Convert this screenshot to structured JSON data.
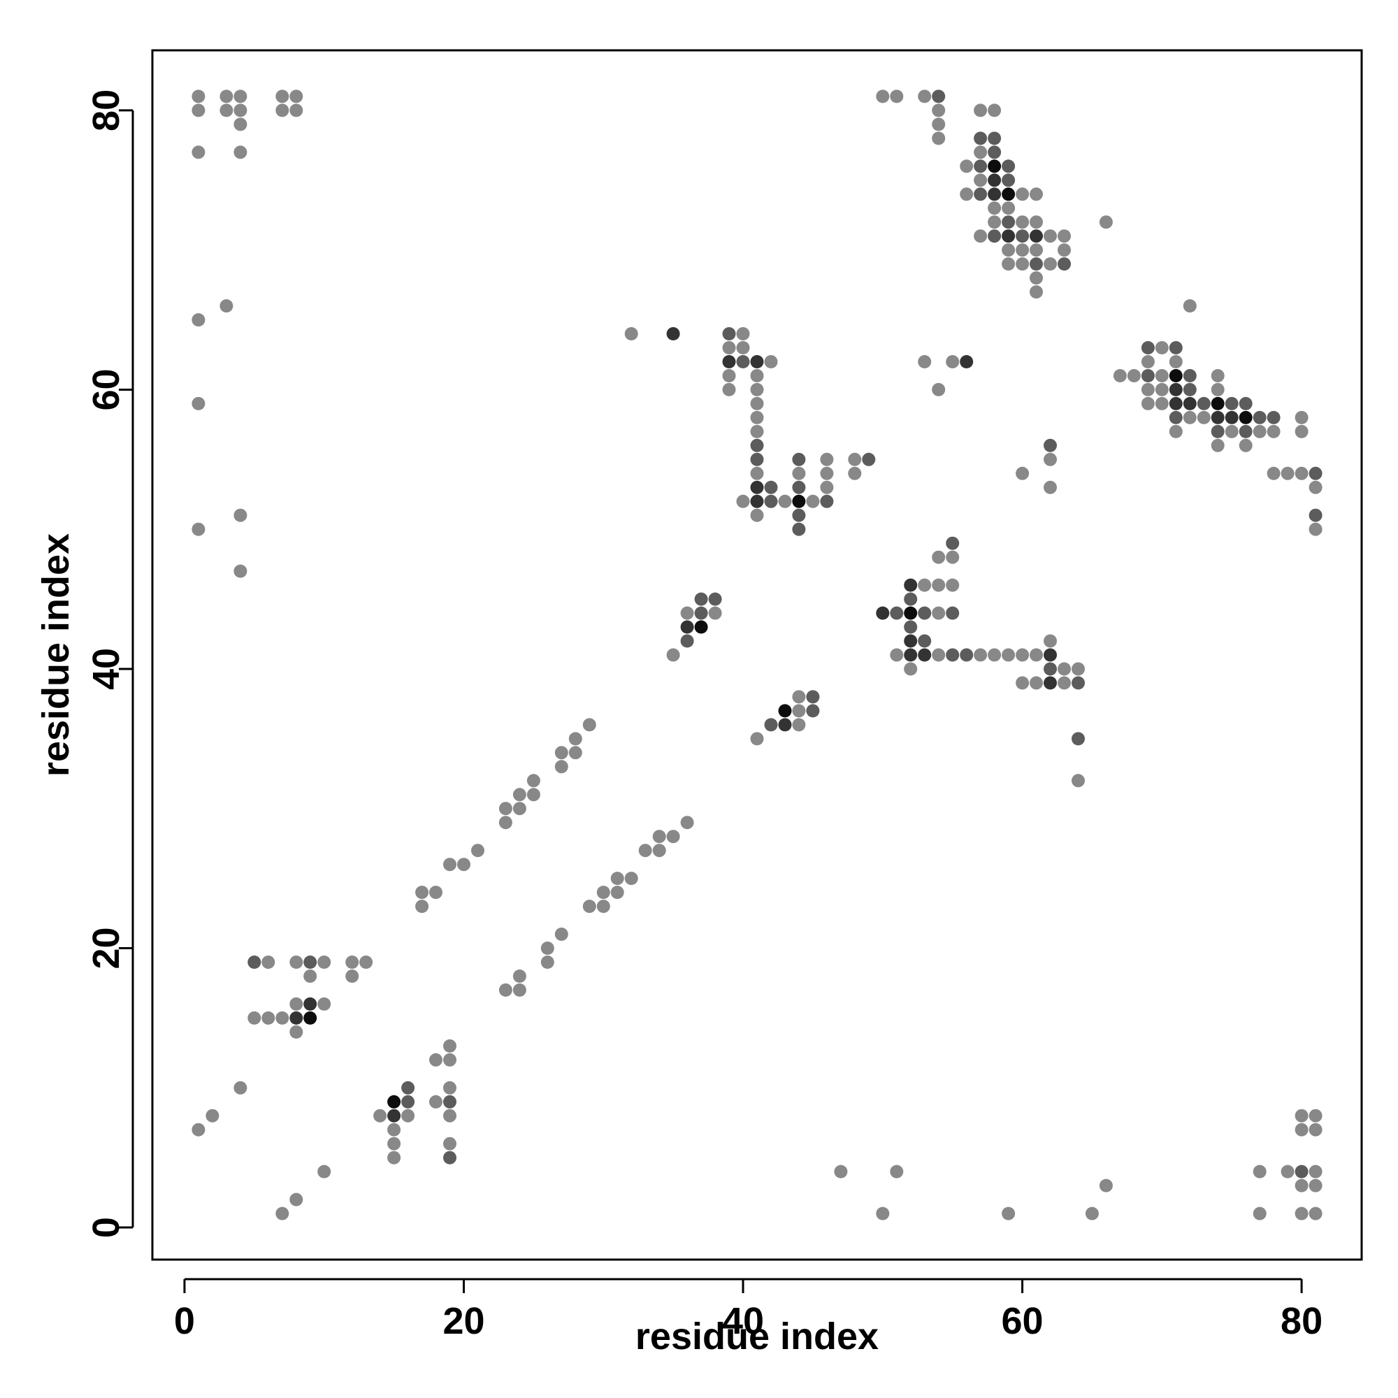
{
  "chart_data": {
    "type": "scatter",
    "title": "",
    "xlabel": "residue index",
    "ylabel": "residue index",
    "xlim": [
      -2.3,
      84.3
    ],
    "ylim": [
      -2.3,
      84.3
    ],
    "xticks": [
      0,
      20,
      40,
      60,
      80
    ],
    "yticks": [
      0,
      20,
      40,
      60,
      80
    ],
    "grid": false,
    "legend": "none",
    "colors": {
      "level1": "#888888",
      "level2": "#5c5c5c",
      "level3": "#333333",
      "level4": "#0d0d0d",
      "frame": "#000000"
    },
    "intensity_levels": [
      1,
      2,
      3,
      4
    ],
    "points": [
      [
        1,
        81,
        1
      ],
      [
        1,
        80,
        1
      ],
      [
        3,
        81,
        1
      ],
      [
        3,
        80,
        1
      ],
      [
        4,
        81,
        1
      ],
      [
        4,
        80,
        1
      ],
      [
        4,
        79,
        1
      ],
      [
        7,
        81,
        1
      ],
      [
        7,
        80,
        1
      ],
      [
        8,
        81,
        1
      ],
      [
        8,
        80,
        1
      ],
      [
        1,
        77,
        1
      ],
      [
        4,
        77,
        1
      ],
      [
        3,
        66,
        1
      ],
      [
        1,
        65,
        1
      ],
      [
        1,
        59,
        1
      ],
      [
        4,
        51,
        1
      ],
      [
        1,
        50,
        1
      ],
      [
        4,
        47,
        1
      ],
      [
        50,
        81,
        1
      ],
      [
        51,
        81,
        1
      ],
      [
        53,
        81,
        1
      ],
      [
        54,
        81,
        2
      ],
      [
        54,
        80,
        1
      ],
      [
        54,
        79,
        1
      ],
      [
        54,
        78,
        1
      ],
      [
        57,
        80,
        1
      ],
      [
        58,
        80,
        1
      ],
      [
        57,
        78,
        2
      ],
      [
        58,
        78,
        2
      ],
      [
        57,
        77,
        1
      ],
      [
        58,
        77,
        2
      ],
      [
        56,
        76,
        1
      ],
      [
        57,
        76,
        2
      ],
      [
        58,
        76,
        4
      ],
      [
        59,
        76,
        2
      ],
      [
        57,
        75,
        1
      ],
      [
        58,
        75,
        3
      ],
      [
        59,
        75,
        2
      ],
      [
        56,
        74,
        1
      ],
      [
        57,
        74,
        2
      ],
      [
        58,
        74,
        3
      ],
      [
        59,
        74,
        4
      ],
      [
        60,
        74,
        1
      ],
      [
        61,
        74,
        1
      ],
      [
        58,
        73,
        1
      ],
      [
        59,
        73,
        1
      ],
      [
        58,
        72,
        1
      ],
      [
        59,
        72,
        2
      ],
      [
        60,
        72,
        1
      ],
      [
        61,
        72,
        1
      ],
      [
        57,
        71,
        1
      ],
      [
        58,
        71,
        2
      ],
      [
        59,
        71,
        3
      ],
      [
        60,
        71,
        2
      ],
      [
        61,
        71,
        3
      ],
      [
        62,
        71,
        1
      ],
      [
        63,
        71,
        1
      ],
      [
        59,
        70,
        1
      ],
      [
        60,
        70,
        1
      ],
      [
        61,
        70,
        1
      ],
      [
        63,
        70,
        1
      ],
      [
        59,
        69,
        1
      ],
      [
        60,
        69,
        1
      ],
      [
        61,
        69,
        2
      ],
      [
        62,
        69,
        1
      ],
      [
        63,
        69,
        2
      ],
      [
        61,
        68,
        1
      ],
      [
        61,
        67,
        1
      ],
      [
        66,
        72,
        1
      ],
      [
        72,
        66,
        1
      ],
      [
        32,
        64,
        1
      ],
      [
        35,
        64,
        3
      ],
      [
        39,
        64,
        2
      ],
      [
        40,
        64,
        1
      ],
      [
        39,
        63,
        1
      ],
      [
        40,
        63,
        1
      ],
      [
        39,
        62,
        3
      ],
      [
        40,
        62,
        2
      ],
      [
        41,
        62,
        3
      ],
      [
        42,
        62,
        1
      ],
      [
        39,
        61,
        1
      ],
      [
        41,
        61,
        1
      ],
      [
        39,
        60,
        1
      ],
      [
        41,
        60,
        1
      ],
      [
        41,
        59,
        1
      ],
      [
        41,
        58,
        1
      ],
      [
        41,
        57,
        1
      ],
      [
        41,
        56,
        2
      ],
      [
        41,
        55,
        2
      ],
      [
        41,
        54,
        1
      ],
      [
        44,
        55,
        2
      ],
      [
        46,
        55,
        1
      ],
      [
        48,
        55,
        1
      ],
      [
        49,
        55,
        2
      ],
      [
        44,
        54,
        1
      ],
      [
        46,
        54,
        1
      ],
      [
        48,
        54,
        1
      ],
      [
        41,
        53,
        3
      ],
      [
        42,
        53,
        2
      ],
      [
        44,
        53,
        2
      ],
      [
        46,
        53,
        1
      ],
      [
        40,
        52,
        1
      ],
      [
        41,
        52,
        3
      ],
      [
        42,
        52,
        2
      ],
      [
        43,
        52,
        1
      ],
      [
        44,
        52,
        4
      ],
      [
        45,
        52,
        1
      ],
      [
        46,
        52,
        2
      ],
      [
        41,
        51,
        1
      ],
      [
        44,
        51,
        2
      ],
      [
        44,
        50,
        2
      ],
      [
        53,
        62,
        1
      ],
      [
        55,
        62,
        1
      ],
      [
        56,
        62,
        3
      ],
      [
        54,
        60,
        1
      ],
      [
        60,
        54,
        1
      ],
      [
        62,
        56,
        2
      ],
      [
        62,
        55,
        1
      ],
      [
        62,
        53,
        1
      ],
      [
        69,
        63,
        2
      ],
      [
        70,
        63,
        1
      ],
      [
        71,
        63,
        2
      ],
      [
        67,
        61,
        1
      ],
      [
        68,
        61,
        1
      ],
      [
        69,
        61,
        2
      ],
      [
        70,
        61,
        1
      ],
      [
        71,
        61,
        4
      ],
      [
        72,
        61,
        2
      ],
      [
        74,
        61,
        1
      ],
      [
        69,
        62,
        1
      ],
      [
        71,
        62,
        1
      ],
      [
        69,
        60,
        1
      ],
      [
        70,
        60,
        1
      ],
      [
        71,
        60,
        3
      ],
      [
        72,
        60,
        2
      ],
      [
        74,
        60,
        1
      ],
      [
        69,
        59,
        1
      ],
      [
        70,
        59,
        1
      ],
      [
        71,
        59,
        3
      ],
      [
        72,
        59,
        3
      ],
      [
        73,
        59,
        2
      ],
      [
        74,
        59,
        4
      ],
      [
        75,
        59,
        2
      ],
      [
        76,
        59,
        2
      ],
      [
        71,
        58,
        2
      ],
      [
        72,
        58,
        1
      ],
      [
        73,
        58,
        1
      ],
      [
        74,
        58,
        3
      ],
      [
        75,
        58,
        3
      ],
      [
        76,
        58,
        4
      ],
      [
        77,
        58,
        2
      ],
      [
        78,
        58,
        2
      ],
      [
        80,
        58,
        1
      ],
      [
        71,
        57,
        1
      ],
      [
        74,
        57,
        2
      ],
      [
        75,
        57,
        1
      ],
      [
        76,
        57,
        2
      ],
      [
        77,
        57,
        1
      ],
      [
        78,
        57,
        1
      ],
      [
        80,
        57,
        1
      ],
      [
        74,
        56,
        1
      ],
      [
        76,
        56,
        1
      ],
      [
        78,
        54,
        1
      ],
      [
        79,
        54,
        1
      ],
      [
        80,
        54,
        1
      ],
      [
        81,
        54,
        2
      ],
      [
        81,
        53,
        1
      ],
      [
        81,
        51,
        2
      ],
      [
        81,
        50,
        1
      ],
      [
        37,
        45,
        2
      ],
      [
        38,
        45,
        2
      ],
      [
        36,
        44,
        1
      ],
      [
        37,
        44,
        2
      ],
      [
        38,
        44,
        1
      ],
      [
        36,
        43,
        3
      ],
      [
        37,
        43,
        4
      ],
      [
        36,
        42,
        2
      ],
      [
        35,
        41,
        1
      ],
      [
        55,
        49,
        2
      ],
      [
        54,
        48,
        1
      ],
      [
        55,
        48,
        1
      ],
      [
        52,
        46,
        3
      ],
      [
        53,
        46,
        1
      ],
      [
        54,
        46,
        1
      ],
      [
        55,
        46,
        1
      ],
      [
        52,
        45,
        2
      ],
      [
        50,
        44,
        3
      ],
      [
        51,
        44,
        2
      ],
      [
        52,
        44,
        4
      ],
      [
        53,
        44,
        2
      ],
      [
        54,
        44,
        1
      ],
      [
        55,
        44,
        2
      ],
      [
        52,
        43,
        2
      ],
      [
        52,
        42,
        3
      ],
      [
        53,
        42,
        2
      ],
      [
        51,
        41,
        1
      ],
      [
        52,
        41,
        3
      ],
      [
        53,
        41,
        3
      ],
      [
        54,
        41,
        1
      ],
      [
        55,
        41,
        2
      ],
      [
        56,
        41,
        2
      ],
      [
        57,
        41,
        1
      ],
      [
        58,
        41,
        1
      ],
      [
        59,
        41,
        1
      ],
      [
        60,
        41,
        1
      ],
      [
        61,
        41,
        1
      ],
      [
        62,
        41,
        3
      ],
      [
        52,
        40,
        1
      ],
      [
        62,
        42,
        1
      ],
      [
        62,
        40,
        2
      ],
      [
        63,
        40,
        1
      ],
      [
        64,
        40,
        1
      ],
      [
        60,
        39,
        1
      ],
      [
        61,
        39,
        1
      ],
      [
        62,
        39,
        3
      ],
      [
        63,
        39,
        1
      ],
      [
        64,
        39,
        2
      ],
      [
        64,
        35,
        2
      ],
      [
        64,
        32,
        1
      ],
      [
        44,
        38,
        1
      ],
      [
        45,
        38,
        2
      ],
      [
        43,
        37,
        4
      ],
      [
        44,
        37,
        1
      ],
      [
        45,
        37,
        2
      ],
      [
        42,
        36,
        2
      ],
      [
        43,
        36,
        3
      ],
      [
        44,
        36,
        1
      ],
      [
        41,
        35,
        1
      ],
      [
        29,
        36,
        1
      ],
      [
        28,
        35,
        1
      ],
      [
        27,
        34,
        1
      ],
      [
        28,
        34,
        1
      ],
      [
        27,
        33,
        1
      ],
      [
        25,
        32,
        1
      ],
      [
        24,
        31,
        1
      ],
      [
        25,
        31,
        1
      ],
      [
        23,
        30,
        1
      ],
      [
        24,
        30,
        1
      ],
      [
        23,
        29,
        1
      ],
      [
        21,
        27,
        1
      ],
      [
        19,
        26,
        1
      ],
      [
        20,
        26,
        1
      ],
      [
        17,
        24,
        1
      ],
      [
        18,
        24,
        1
      ],
      [
        17,
        23,
        1
      ],
      [
        36,
        29,
        1
      ],
      [
        34,
        28,
        1
      ],
      [
        35,
        28,
        1
      ],
      [
        33,
        27,
        1
      ],
      [
        34,
        27,
        1
      ],
      [
        31,
        25,
        1
      ],
      [
        32,
        25,
        1
      ],
      [
        30,
        24,
        1
      ],
      [
        31,
        24,
        1
      ],
      [
        29,
        23,
        1
      ],
      [
        30,
        23,
        1
      ],
      [
        27,
        21,
        1
      ],
      [
        26,
        20,
        1
      ],
      [
        26,
        19,
        1
      ],
      [
        24,
        18,
        1
      ],
      [
        23,
        17,
        1
      ],
      [
        24,
        17,
        1
      ],
      [
        5,
        19,
        2
      ],
      [
        6,
        19,
        1
      ],
      [
        8,
        19,
        1
      ],
      [
        9,
        19,
        2
      ],
      [
        10,
        19,
        1
      ],
      [
        12,
        19,
        1
      ],
      [
        13,
        19,
        1
      ],
      [
        9,
        18,
        1
      ],
      [
        12,
        18,
        1
      ],
      [
        8,
        16,
        1
      ],
      [
        9,
        16,
        3
      ],
      [
        10,
        16,
        1
      ],
      [
        5,
        15,
        1
      ],
      [
        6,
        15,
        1
      ],
      [
        7,
        15,
        1
      ],
      [
        8,
        15,
        3
      ],
      [
        9,
        15,
        4
      ],
      [
        8,
        14,
        1
      ],
      [
        19,
        13,
        1
      ],
      [
        18,
        12,
        1
      ],
      [
        19,
        12,
        1
      ],
      [
        16,
        10,
        2
      ],
      [
        19,
        10,
        1
      ],
      [
        15,
        9,
        4
      ],
      [
        16,
        9,
        2
      ],
      [
        18,
        9,
        1
      ],
      [
        19,
        9,
        2
      ],
      [
        14,
        8,
        1
      ],
      [
        15,
        8,
        3
      ],
      [
        16,
        8,
        1
      ],
      [
        19,
        8,
        1
      ],
      [
        15,
        7,
        1
      ],
      [
        15,
        6,
        1
      ],
      [
        19,
        6,
        1
      ],
      [
        15,
        5,
        1
      ],
      [
        19,
        5,
        2
      ],
      [
        4,
        10,
        1
      ],
      [
        2,
        8,
        1
      ],
      [
        1,
        7,
        1
      ],
      [
        10,
        4,
        1
      ],
      [
        8,
        2,
        1
      ],
      [
        7,
        1,
        1
      ],
      [
        47,
        4,
        1
      ],
      [
        51,
        4,
        1
      ],
      [
        50,
        1,
        1
      ],
      [
        59,
        1,
        1
      ],
      [
        65,
        1,
        1
      ],
      [
        66,
        3,
        1
      ],
      [
        80,
        8,
        1
      ],
      [
        81,
        8,
        1
      ],
      [
        80,
        7,
        1
      ],
      [
        81,
        7,
        1
      ],
      [
        77,
        4,
        1
      ],
      [
        79,
        4,
        1
      ],
      [
        80,
        4,
        2
      ],
      [
        81,
        4,
        1
      ],
      [
        80,
        3,
        1
      ],
      [
        81,
        3,
        1
      ],
      [
        77,
        1,
        1
      ],
      [
        80,
        1,
        1
      ],
      [
        81,
        1,
        1
      ]
    ]
  }
}
